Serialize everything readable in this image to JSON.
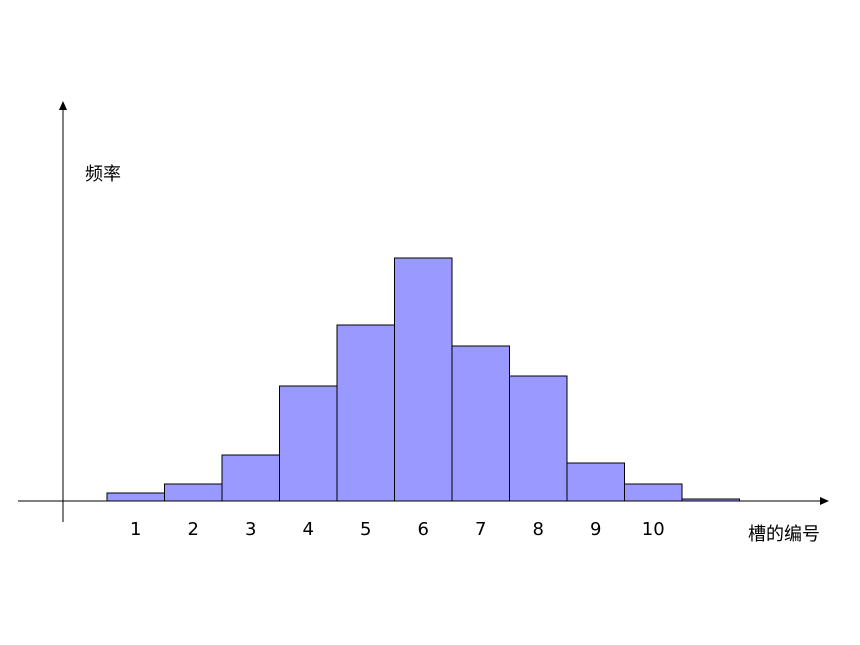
{
  "chart_data": {
    "type": "bar",
    "y_label": "频率",
    "x_label": "槽的编号",
    "categories": [
      "1",
      "2",
      "3",
      "4",
      "5",
      "6",
      "7",
      "8",
      "9",
      "10",
      null
    ],
    "values": [
      8,
      17,
      46,
      115,
      176,
      243,
      155,
      125,
      38,
      17,
      2
    ],
    "color": "#9999ff",
    "ylim": [
      0,
      400
    ]
  }
}
